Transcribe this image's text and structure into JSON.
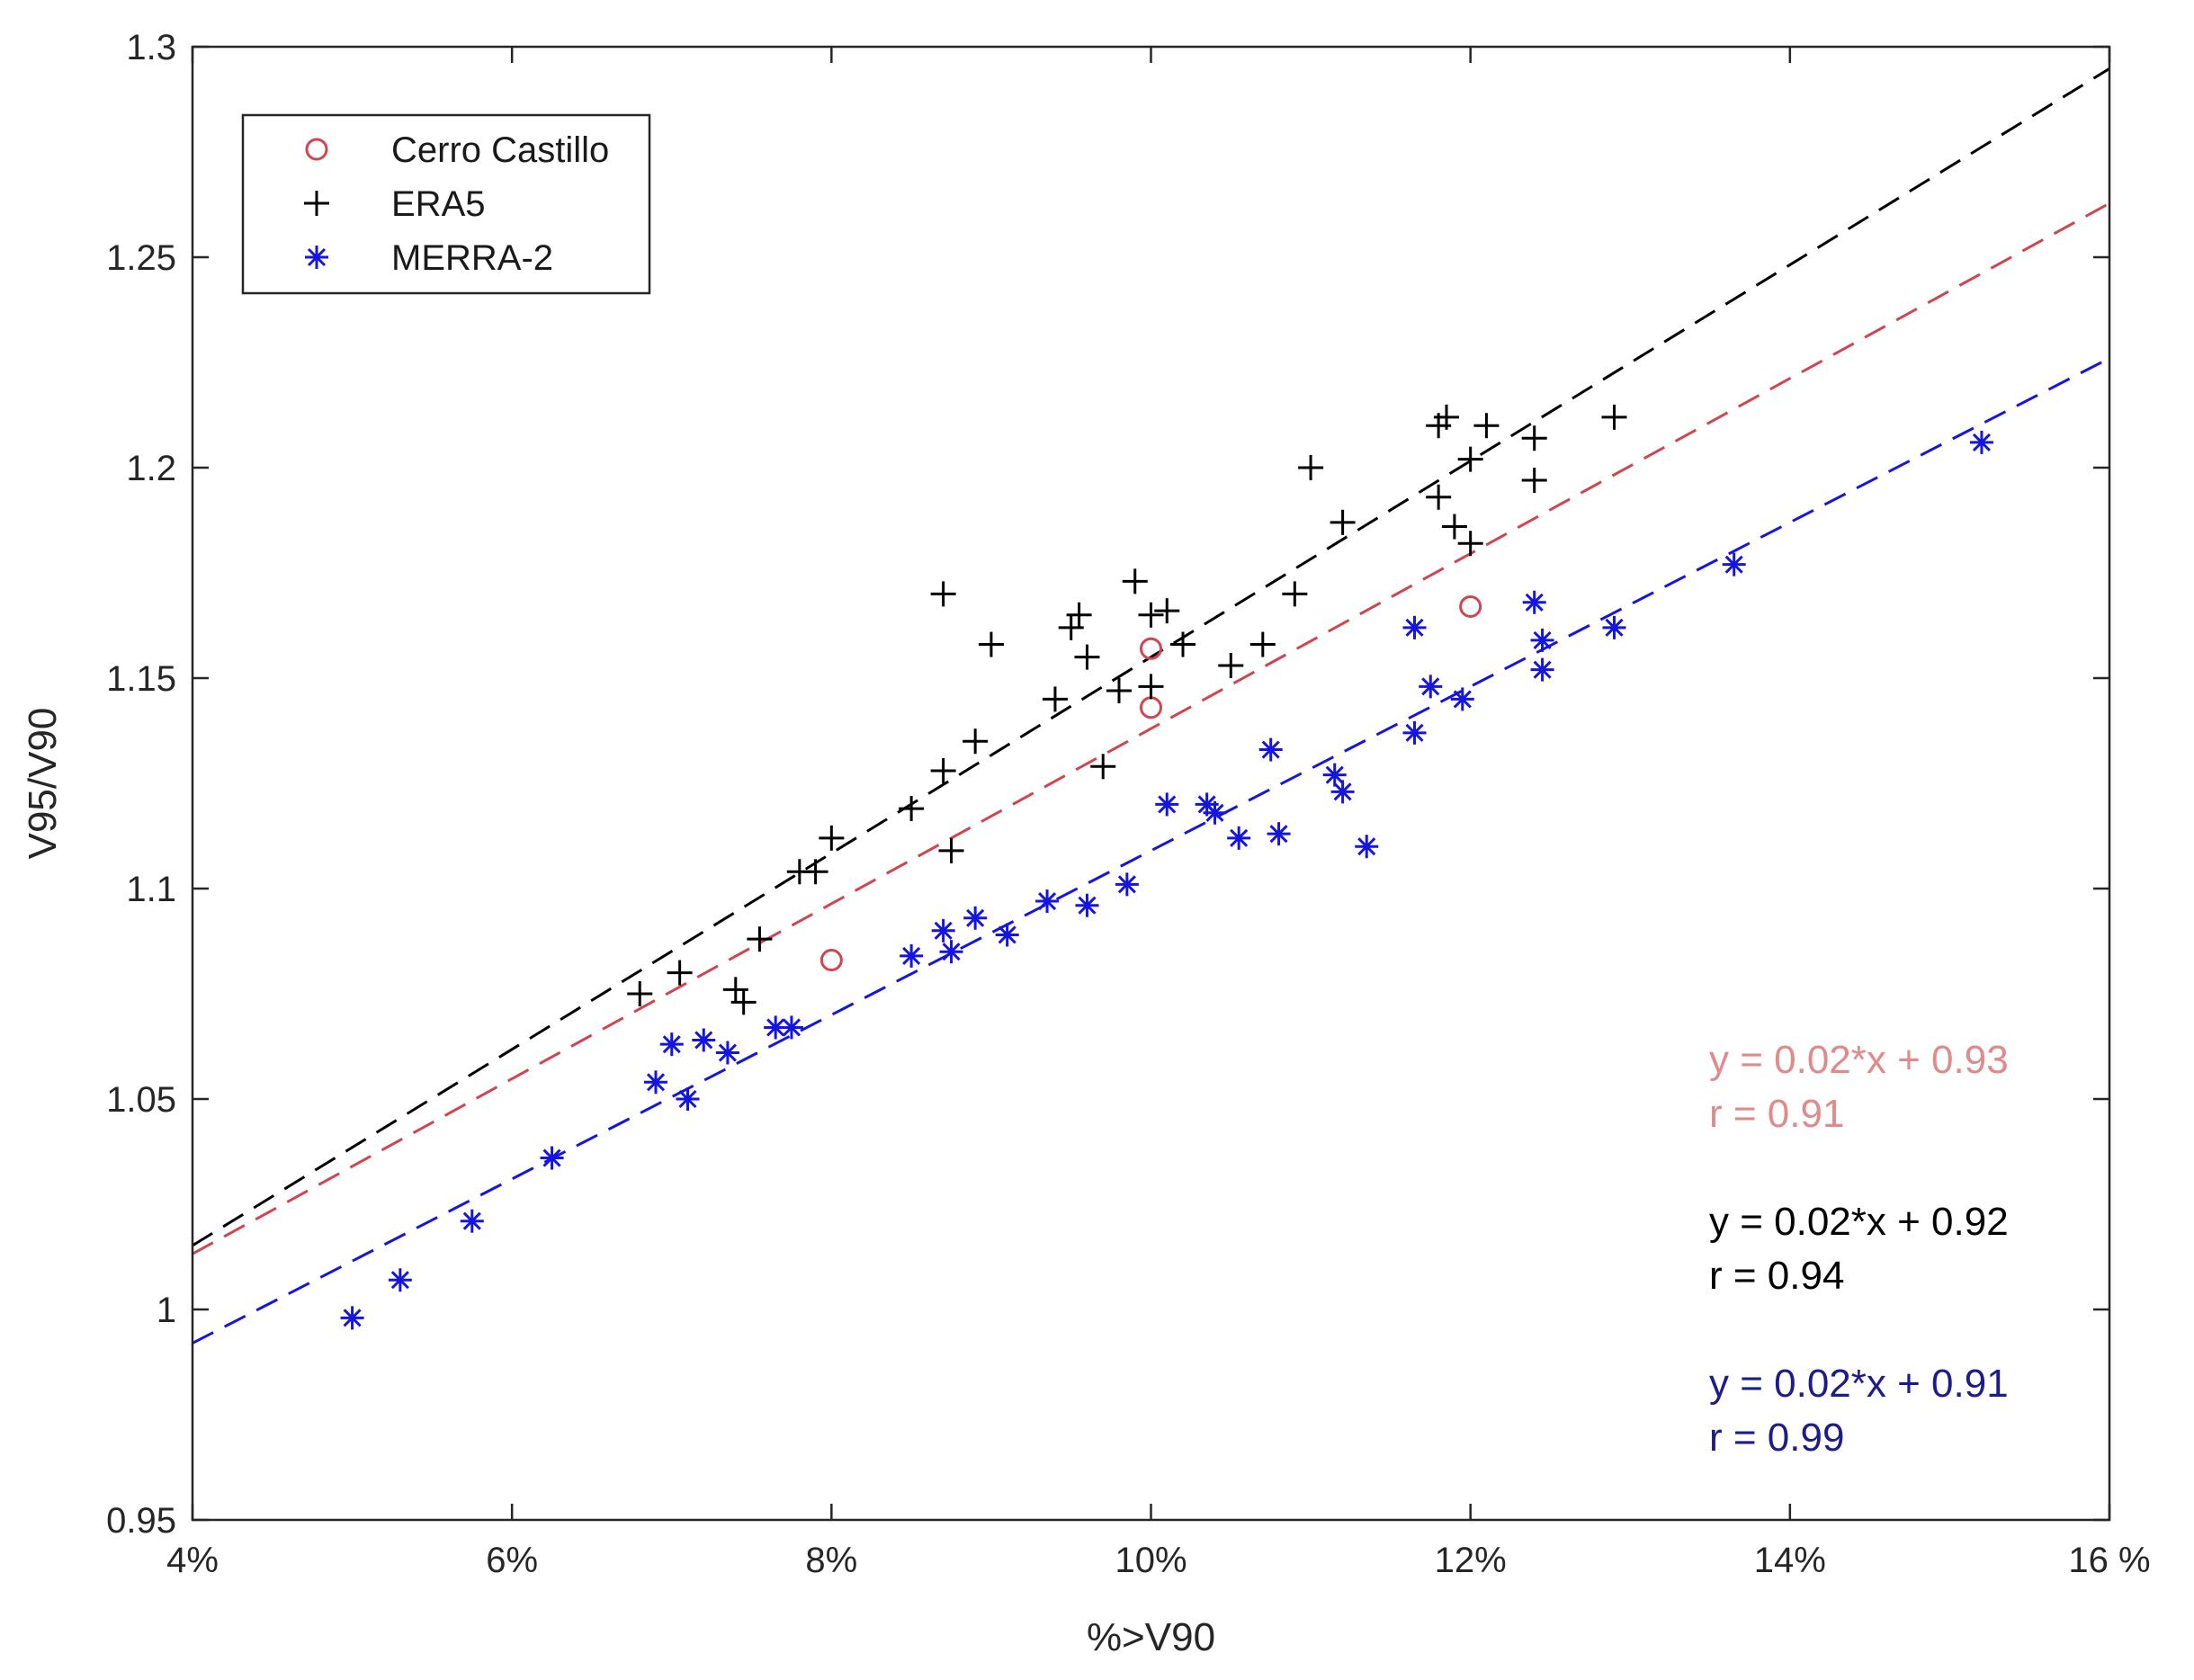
{
  "chart_data": {
    "type": "scatter",
    "title": "",
    "xlabel": "%>V90",
    "ylabel": "V95/V90",
    "xlim": [
      4,
      16
    ],
    "ylim": [
      0.95,
      1.3
    ],
    "xticks": [
      4,
      6,
      8,
      10,
      12,
      14,
      16
    ],
    "xtick_labels": [
      "4%",
      "6%",
      "8%",
      "10%",
      "12%",
      "14%",
      "16 %"
    ],
    "yticks": [
      0.95,
      1.0,
      1.05,
      1.1,
      1.15,
      1.2,
      1.25,
      1.3
    ],
    "ytick_labels": [
      "0.95",
      "1",
      "1.05",
      "1.1",
      "1.15",
      "1.2",
      "1.25",
      "1.3"
    ],
    "grid": false,
    "legend_position": "top-left",
    "series": [
      {
        "name": "Cerro Castillo",
        "marker": "circle",
        "color": "#d0454f",
        "points": [
          [
            8.0,
            1.083
          ],
          [
            10.0,
            1.157
          ],
          [
            10.0,
            1.143
          ],
          [
            12.0,
            1.167
          ]
        ],
        "fit": {
          "slope": 0.0208,
          "intercept": 0.93,
          "x_range": [
            4,
            16
          ]
        }
      },
      {
        "name": "ERA5",
        "marker": "plus",
        "color": "#000000",
        "points": [
          [
            6.8,
            1.075
          ],
          [
            7.05,
            1.08
          ],
          [
            7.4,
            1.076
          ],
          [
            7.45,
            1.073
          ],
          [
            7.55,
            1.088
          ],
          [
            7.8,
            1.104
          ],
          [
            7.9,
            1.104
          ],
          [
            8.0,
            1.112
          ],
          [
            8.5,
            1.119
          ],
          [
            8.7,
            1.128
          ],
          [
            8.75,
            1.109
          ],
          [
            8.9,
            1.135
          ],
          [
            8.7,
            1.17
          ],
          [
            9.0,
            1.158
          ],
          [
            9.4,
            1.145
          ],
          [
            9.5,
            1.162
          ],
          [
            9.55,
            1.165
          ],
          [
            9.6,
            1.155
          ],
          [
            9.7,
            1.129
          ],
          [
            9.8,
            1.147
          ],
          [
            9.9,
            1.173
          ],
          [
            10.0,
            1.165
          ],
          [
            10.1,
            1.166
          ],
          [
            10.0,
            1.148
          ],
          [
            10.2,
            1.158
          ],
          [
            10.5,
            1.153
          ],
          [
            10.7,
            1.158
          ],
          [
            10.9,
            1.17
          ],
          [
            11.0,
            1.2
          ],
          [
            11.2,
            1.187
          ],
          [
            11.8,
            1.21
          ],
          [
            11.85,
            1.212
          ],
          [
            11.8,
            1.193
          ],
          [
            11.9,
            1.186
          ],
          [
            12.0,
            1.202
          ],
          [
            12.0,
            1.182
          ],
          [
            12.1,
            1.21
          ],
          [
            12.4,
            1.207
          ],
          [
            12.4,
            1.197
          ],
          [
            12.9,
            1.212
          ]
        ],
        "fit": {
          "slope": 0.0233,
          "intercept": 0.922,
          "x_range": [
            4,
            16
          ]
        }
      },
      {
        "name": "MERRA-2",
        "marker": "asterisk",
        "color": "#1515e0",
        "points": [
          [
            5.0,
            0.998
          ],
          [
            5.3,
            1.007
          ],
          [
            5.75,
            1.021
          ],
          [
            6.25,
            1.036
          ],
          [
            6.9,
            1.054
          ],
          [
            7.0,
            1.063
          ],
          [
            7.1,
            1.05
          ],
          [
            7.2,
            1.064
          ],
          [
            7.35,
            1.061
          ],
          [
            7.65,
            1.067
          ],
          [
            7.75,
            1.067
          ],
          [
            8.5,
            1.084
          ],
          [
            8.7,
            1.09
          ],
          [
            8.75,
            1.085
          ],
          [
            8.9,
            1.093
          ],
          [
            9.1,
            1.089
          ],
          [
            9.35,
            1.097
          ],
          [
            9.6,
            1.096
          ],
          [
            9.85,
            1.101
          ],
          [
            10.1,
            1.12
          ],
          [
            10.35,
            1.12
          ],
          [
            10.4,
            1.118
          ],
          [
            10.55,
            1.112
          ],
          [
            10.75,
            1.133
          ],
          [
            10.8,
            1.113
          ],
          [
            11.15,
            1.127
          ],
          [
            11.2,
            1.123
          ],
          [
            11.35,
            1.11
          ],
          [
            11.65,
            1.137
          ],
          [
            11.65,
            1.162
          ],
          [
            11.75,
            1.148
          ],
          [
            11.95,
            1.145
          ],
          [
            12.4,
            1.168
          ],
          [
            12.45,
            1.152
          ],
          [
            12.45,
            1.159
          ],
          [
            12.9,
            1.162
          ],
          [
            13.65,
            1.177
          ],
          [
            15.2,
            1.206
          ]
        ],
        "fit": {
          "slope": 0.0195,
          "intercept": 0.914,
          "x_range": [
            4,
            16
          ]
        }
      }
    ],
    "annotations": [
      {
        "lines": [
          "y = 0.02*x + 0.93",
          "r = 0.91"
        ],
        "color": "#e08a8a"
      },
      {
        "lines": [
          "y = 0.02*x + 0.92",
          "r = 0.94"
        ],
        "color": "#000000"
      },
      {
        "lines": [
          "y = 0.02*x + 0.91",
          "r  = 0.99"
        ],
        "color": "#1c1c8c"
      }
    ]
  }
}
